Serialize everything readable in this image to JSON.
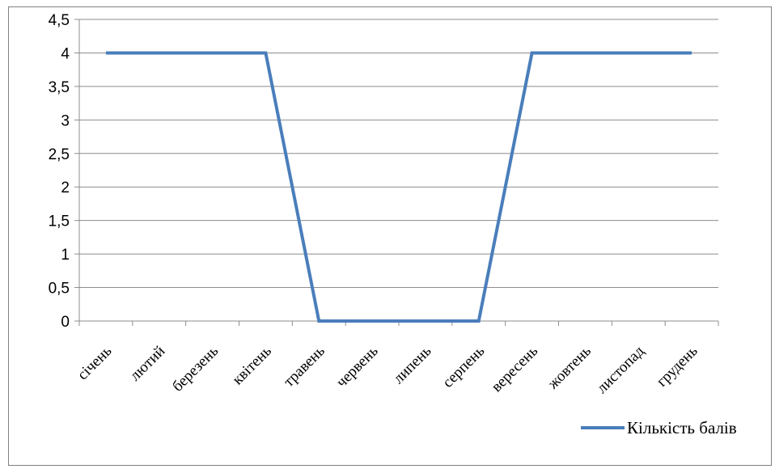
{
  "chart_data": {
    "type": "line",
    "categories": [
      "січень",
      "лютий",
      "березень",
      "квітень",
      "травень",
      "червень",
      "липень",
      "серпень",
      "вересень",
      "жовтень",
      "листопад",
      "грудень"
    ],
    "series": [
      {
        "name": "Кількість балів",
        "values": [
          4,
          4,
          4,
          4,
          0,
          0,
          0,
          0,
          4,
          4,
          4,
          4
        ],
        "color": "#4a7ebb"
      }
    ],
    "ylim": [
      0,
      4.5
    ],
    "yticks": [
      "0",
      "0,5",
      "1",
      "1,5",
      "2",
      "2,5",
      "3",
      "3,5",
      "4",
      "4,5"
    ],
    "grid": true,
    "legend_position": "bottom-right",
    "gridline_color": "#8c8c8c",
    "axis_color": "#8c8c8c"
  }
}
